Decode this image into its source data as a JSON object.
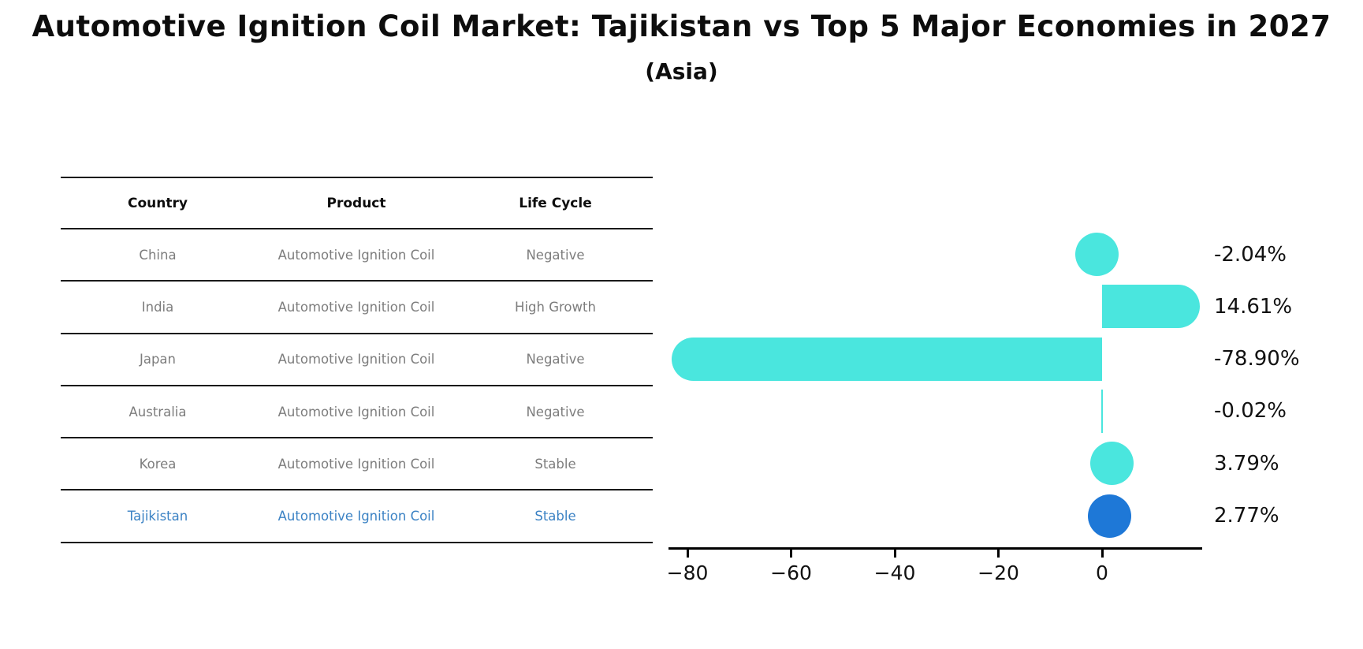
{
  "title": "Automotive Ignition Coil Market: Tajikistan vs Top 5 Major Economies in 2027",
  "subtitle": "(Asia)",
  "table": {
    "headers": [
      "Country",
      "Product",
      "Life Cycle"
    ],
    "rows": [
      {
        "country": "China",
        "product": "Automotive Ignition Coil",
        "life_cycle": "Negative",
        "highlight": false
      },
      {
        "country": "India",
        "product": "Automotive Ignition Coil",
        "life_cycle": "High Growth",
        "highlight": false
      },
      {
        "country": "Japan",
        "product": "Automotive Ignition Coil",
        "life_cycle": "Negative",
        "highlight": false
      },
      {
        "country": "Australia",
        "product": "Automotive Ignition Coil",
        "life_cycle": "Negative",
        "highlight": false
      },
      {
        "country": "Korea",
        "product": "Automotive Ignition Coil",
        "life_cycle": "Stable",
        "highlight": false
      },
      {
        "country": "Tajikistan",
        "product": "Automotive Ignition Coil",
        "life_cycle": "Stable",
        "highlight": true
      }
    ],
    "row_text_color": "#7d7d7d",
    "highlight_text_color": "#3b82c4"
  },
  "chart_data": {
    "type": "bar",
    "orientation": "horizontal",
    "categories": [
      "China",
      "India",
      "Japan",
      "Australia",
      "Korea",
      "Tajikistan"
    ],
    "values": [
      -2.04,
      14.61,
      -78.9,
      -0.02,
      3.79,
      2.77
    ],
    "value_labels": [
      "-2.04%",
      "14.61%",
      "-78.90%",
      "-0.02%",
      "3.79%",
      "2.77%"
    ],
    "x_ticks": [
      -80,
      -60,
      -40,
      -20,
      0
    ],
    "x_tick_labels": [
      "−80",
      "−60",
      "−40",
      "−20",
      "0"
    ],
    "xlim": [
      -83.6,
      19.3
    ],
    "title": "",
    "xlabel": "",
    "ylabel": "",
    "grid": false,
    "legend": false,
    "bar_color": "#4ae6de",
    "highlight_bar_color": "#1e78d7",
    "highlight_index": 5
  }
}
